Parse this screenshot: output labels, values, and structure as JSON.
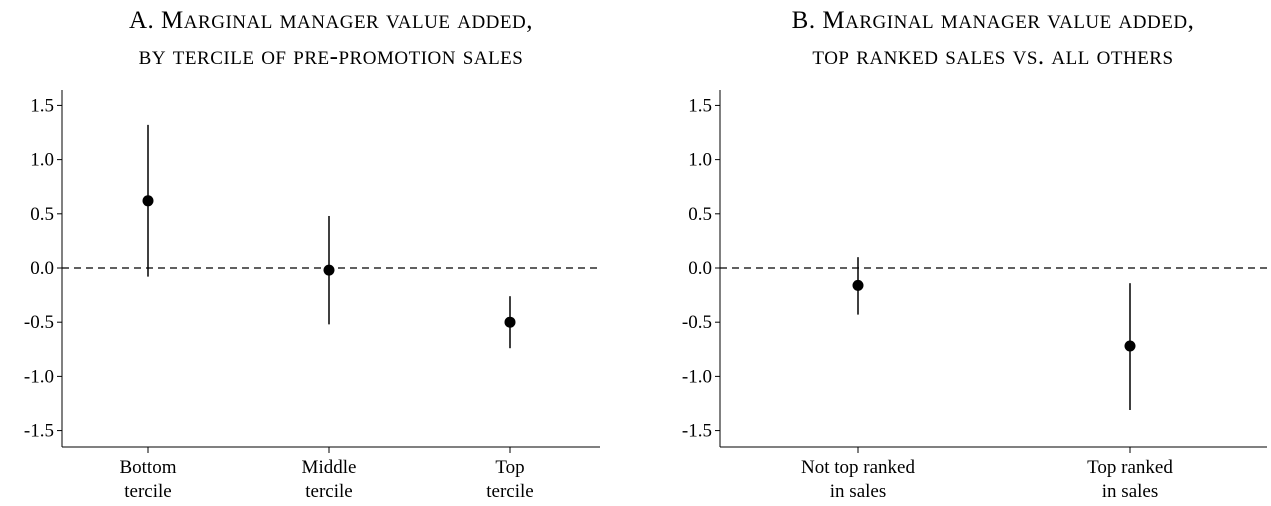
{
  "chart_data": [
    {
      "type": "scatter",
      "title_line1": "A. Marginal manager value added,",
      "title_line2": "by tercile of pre-promotion sales",
      "categories": [
        {
          "line1": "Bottom",
          "line2": "tercile"
        },
        {
          "line1": "Middle",
          "line2": "tercile"
        },
        {
          "line1": "Top",
          "line2": "tercile"
        }
      ],
      "points": [
        {
          "y": 0.62,
          "ci_low": -0.08,
          "ci_high": 1.32
        },
        {
          "y": -0.02,
          "ci_low": -0.52,
          "ci_high": 0.48
        },
        {
          "y": -0.5,
          "ci_low": -0.74,
          "ci_high": -0.26
        }
      ],
      "ylim": [
        -1.55,
        1.55
      ],
      "yticks": [
        "1.5",
        "1.0",
        "0.5",
        "0.0",
        "-0.5",
        "-1.0",
        "-1.5"
      ],
      "reference_line": 0.0,
      "grid": false
    },
    {
      "type": "scatter",
      "title_line1": "B. Marginal manager value added,",
      "title_line2": "top ranked sales vs. all others",
      "categories": [
        {
          "line1": "Not top ranked",
          "line2": "in sales"
        },
        {
          "line1": "Top ranked",
          "line2": "in sales"
        }
      ],
      "points": [
        {
          "y": -0.16,
          "ci_low": -0.43,
          "ci_high": 0.1
        },
        {
          "y": -0.72,
          "ci_low": -1.31,
          "ci_high": -0.14
        }
      ],
      "ylim": [
        -1.55,
        1.55
      ],
      "yticks": [
        "1.5",
        "1.0",
        "0.5",
        "0.0",
        "-0.5",
        "-1.0",
        "-1.5"
      ],
      "reference_line": 0.0,
      "grid": false
    }
  ]
}
